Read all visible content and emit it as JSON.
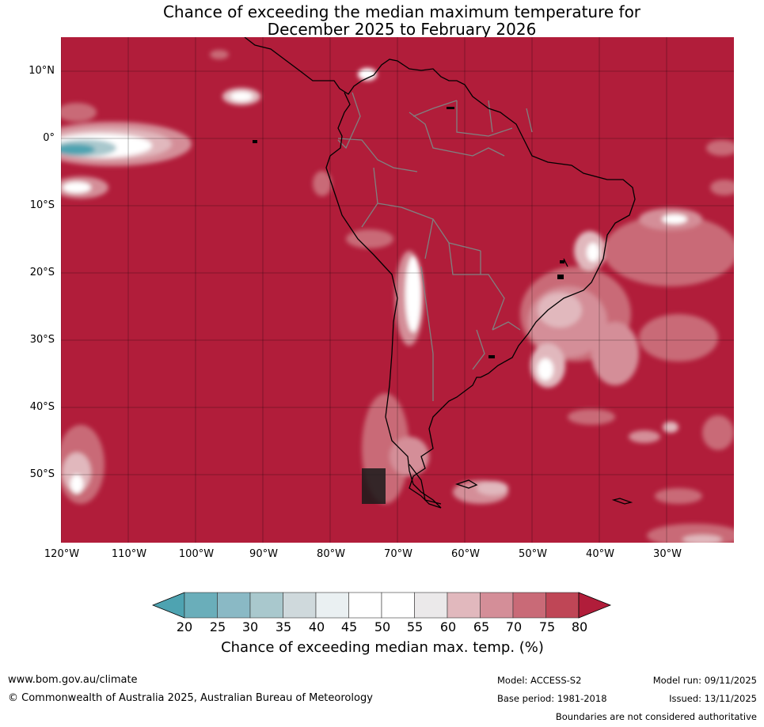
{
  "title": {
    "line1": "Chance of exceeding the median maximum temperature for",
    "line2": "December 2025 to February 2026"
  },
  "map": {
    "region": "South America",
    "lat_labels": [
      "10°N",
      "0°",
      "10°S",
      "20°S",
      "30°S",
      "40°S",
      "50°S"
    ],
    "lon_labels": [
      "120°W",
      "110°W",
      "100°W",
      "90°W",
      "80°W",
      "70°W",
      "60°W",
      "50°W",
      "40°W",
      "30°W"
    ],
    "colors": {
      "ocean_fill": "#b11d3a",
      "coast": "#000000",
      "borders": "#808080"
    }
  },
  "colorbar": {
    "ticks": [
      "20",
      "25",
      "30",
      "35",
      "40",
      "45",
      "50",
      "55",
      "60",
      "65",
      "70",
      "75",
      "80"
    ],
    "colors": [
      "#4ea3b1",
      "#6aaeba",
      "#8ab9c5",
      "#a9c8cd",
      "#cfd9dc",
      "#eaf0f2",
      "#ffffff",
      "#ffffff",
      "#ebe9ea",
      "#e1b8bd",
      "#d48e98",
      "#c96a77",
      "#bf4656",
      "#b11d3a"
    ],
    "label": "Chance of exceeding median max. temp. (%)"
  },
  "footer": {
    "website": "www.bom.gov.au/climate",
    "copyright": "© Commonwealth of Australia 2025, Australian Bureau of Meteorology",
    "model": "Model: ACCESS-S2",
    "base_period": "Base period: 1981-2018",
    "model_run": "Model run: 09/11/2025",
    "issued": "Issued: 13/11/2025",
    "disclaimer": "Boundaries are not considered authoritative"
  }
}
